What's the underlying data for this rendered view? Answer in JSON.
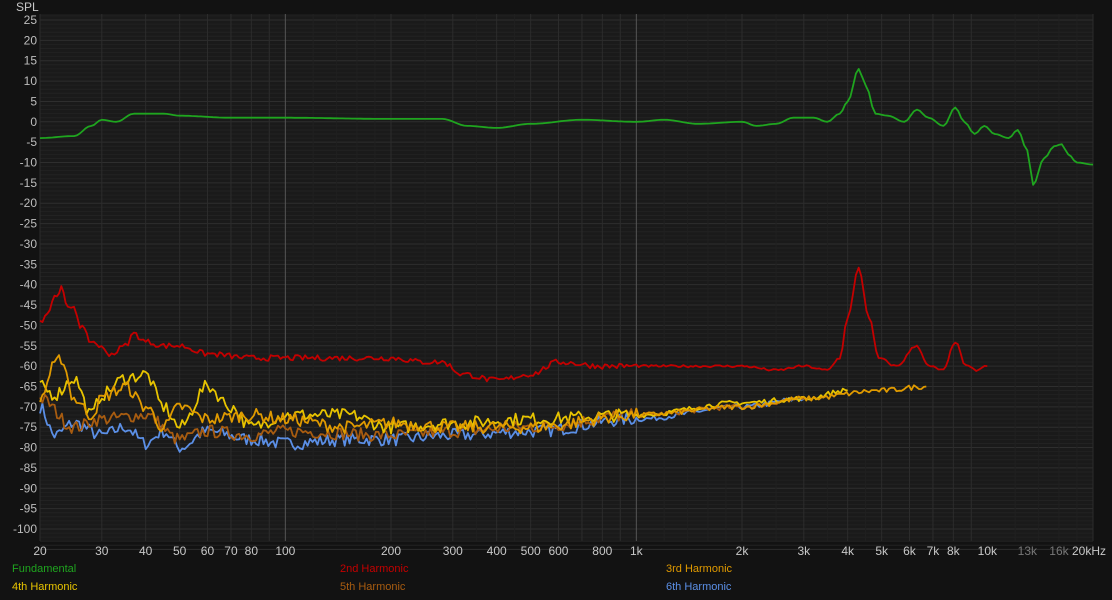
{
  "chart_data": {
    "type": "line",
    "ylabel": "SPL",
    "xscale": "log",
    "xlim": [
      20,
      20000
    ],
    "ylim": [
      -105,
      26
    ],
    "y_ticks": [
      25,
      20,
      15,
      10,
      5,
      0,
      -5,
      -10,
      -15,
      -20,
      -25,
      -30,
      -35,
      -40,
      -45,
      -50,
      -55,
      -60,
      -65,
      -70,
      -75,
      -80,
      -85,
      -90,
      -95,
      -100
    ],
    "x_ticks": [
      {
        "v": 20,
        "label": "20"
      },
      {
        "v": 30,
        "label": "30"
      },
      {
        "v": 40,
        "label": "40"
      },
      {
        "v": 50,
        "label": "50"
      },
      {
        "v": 60,
        "label": "60"
      },
      {
        "v": 70,
        "label": "70"
      },
      {
        "v": 80,
        "label": "80"
      },
      {
        "v": 100,
        "label": "100"
      },
      {
        "v": 200,
        "label": "200"
      },
      {
        "v": 300,
        "label": "300"
      },
      {
        "v": 400,
        "label": "400"
      },
      {
        "v": 500,
        "label": "500"
      },
      {
        "v": 600,
        "label": "600"
      },
      {
        "v": 800,
        "label": "800"
      },
      {
        "v": 1000,
        "label": "1k"
      },
      {
        "v": 2000,
        "label": "2k"
      },
      {
        "v": 3000,
        "label": "3k"
      },
      {
        "v": 4000,
        "label": "4k"
      },
      {
        "v": 5000,
        "label": "5k"
      },
      {
        "v": 6000,
        "label": "6k"
      },
      {
        "v": 7000,
        "label": "7k"
      },
      {
        "v": 8000,
        "label": "8k"
      },
      {
        "v": 10000,
        "label": "10k"
      },
      {
        "v": 13000,
        "label": "13k",
        "dim": true
      },
      {
        "v": 16000,
        "label": "16k",
        "dim": true
      },
      {
        "v": 20000,
        "label": "20kHz"
      }
    ],
    "grid": true,
    "legend_placement": "bottom",
    "series": [
      {
        "name": "Fundamental",
        "color": "#1fa51f",
        "points": [
          [
            20,
            -4
          ],
          [
            25,
            -3.5
          ],
          [
            28,
            -1
          ],
          [
            30,
            0.5
          ],
          [
            33,
            0
          ],
          [
            37,
            2
          ],
          [
            45,
            2
          ],
          [
            50,
            1.5
          ],
          [
            70,
            1
          ],
          [
            100,
            1
          ],
          [
            200,
            0.7
          ],
          [
            280,
            0.7
          ],
          [
            330,
            -1
          ],
          [
            400,
            -1.5
          ],
          [
            500,
            -0.5
          ],
          [
            700,
            0.5
          ],
          [
            1000,
            0
          ],
          [
            1200,
            0.5
          ],
          [
            1500,
            -0.5
          ],
          [
            2000,
            0
          ],
          [
            2200,
            -1
          ],
          [
            2500,
            -0.5
          ],
          [
            2800,
            1
          ],
          [
            3200,
            1
          ],
          [
            3500,
            0
          ],
          [
            3800,
            2
          ],
          [
            4000,
            5
          ],
          [
            4300,
            13
          ],
          [
            4500,
            9
          ],
          [
            4800,
            2
          ],
          [
            5200,
            1.5
          ],
          [
            5800,
            0
          ],
          [
            6300,
            3
          ],
          [
            6800,
            1
          ],
          [
            7500,
            -1
          ],
          [
            8100,
            3.5
          ],
          [
            8600,
            0
          ],
          [
            9200,
            -3
          ],
          [
            9800,
            -1
          ],
          [
            10500,
            -3
          ],
          [
            11500,
            -4
          ],
          [
            12200,
            -2
          ],
          [
            13000,
            -7
          ],
          [
            13500,
            -15.5
          ],
          [
            14500,
            -9
          ],
          [
            15500,
            -6
          ],
          [
            16300,
            -5.5
          ],
          [
            17000,
            -8
          ],
          [
            18000,
            -10
          ],
          [
            20000,
            -10.5
          ]
        ]
      },
      {
        "name": "2nd Harmonic",
        "color": "#c40000",
        "points": [
          [
            20,
            -49
          ],
          [
            21,
            -47
          ],
          [
            22,
            -43
          ],
          [
            23,
            -41
          ],
          [
            24,
            -46
          ],
          [
            25,
            -45
          ],
          [
            26,
            -50
          ],
          [
            28,
            -54
          ],
          [
            32,
            -57
          ],
          [
            35,
            -55
          ],
          [
            37,
            -52
          ],
          [
            40,
            -54
          ],
          [
            45,
            -55
          ],
          [
            50,
            -55
          ],
          [
            60,
            -57
          ],
          [
            80,
            -58
          ],
          [
            100,
            -58
          ],
          [
            150,
            -58
          ],
          [
            200,
            -58
          ],
          [
            250,
            -59
          ],
          [
            280,
            -59
          ],
          [
            320,
            -62
          ],
          [
            400,
            -63.5
          ],
          [
            500,
            -62
          ],
          [
            600,
            -59
          ],
          [
            800,
            -60
          ],
          [
            1000,
            -60
          ],
          [
            1500,
            -60
          ],
          [
            2000,
            -60
          ],
          [
            2500,
            -61
          ],
          [
            3000,
            -60
          ],
          [
            3500,
            -61
          ],
          [
            3800,
            -58
          ],
          [
            4000,
            -48
          ],
          [
            4300,
            -36
          ],
          [
            4600,
            -48
          ],
          [
            4900,
            -58
          ],
          [
            5500,
            -60
          ],
          [
            6300,
            -55
          ],
          [
            6800,
            -60
          ],
          [
            7500,
            -61
          ],
          [
            8100,
            -54
          ],
          [
            8700,
            -60
          ],
          [
            9300,
            -61
          ],
          [
            10000,
            -60
          ]
        ]
      },
      {
        "name": "3rd Harmonic",
        "color": "#e09a00",
        "points": [
          [
            20,
            -68
          ],
          [
            22,
            -60
          ],
          [
            23,
            -58
          ],
          [
            25,
            -68
          ],
          [
            28,
            -72
          ],
          [
            30,
            -68
          ],
          [
            33,
            -66
          ],
          [
            35,
            -65
          ],
          [
            40,
            -70
          ],
          [
            45,
            -75
          ],
          [
            50,
            -70
          ],
          [
            60,
            -73
          ],
          [
            80,
            -72
          ],
          [
            100,
            -73
          ],
          [
            150,
            -75
          ],
          [
            200,
            -74
          ],
          [
            300,
            -75
          ],
          [
            500,
            -75
          ],
          [
            1000,
            -72
          ],
          [
            2000,
            -70
          ],
          [
            3000,
            -68
          ],
          [
            5000,
            -66
          ],
          [
            6700,
            -65
          ]
        ]
      },
      {
        "name": "4th Harmonic",
        "color": "#e8c400",
        "points": [
          [
            20,
            -65
          ],
          [
            22,
            -67
          ],
          [
            25,
            -63
          ],
          [
            28,
            -72
          ],
          [
            30,
            -67
          ],
          [
            35,
            -63
          ],
          [
            40,
            -62
          ],
          [
            45,
            -70
          ],
          [
            50,
            -75
          ],
          [
            60,
            -65
          ],
          [
            70,
            -70
          ],
          [
            80,
            -75
          ],
          [
            100,
            -72
          ],
          [
            150,
            -72
          ],
          [
            200,
            -75
          ],
          [
            300,
            -74
          ],
          [
            500,
            -73
          ],
          [
            1000,
            -72
          ],
          [
            2000,
            -69
          ],
          [
            3000,
            -68
          ],
          [
            4000,
            -66
          ]
        ]
      },
      {
        "name": "5th Harmonic",
        "color": "#a85c10",
        "points": [
          [
            20,
            -68
          ],
          [
            25,
            -75
          ],
          [
            30,
            -73
          ],
          [
            40,
            -72
          ],
          [
            50,
            -78
          ],
          [
            60,
            -76
          ],
          [
            80,
            -77
          ],
          [
            100,
            -76
          ],
          [
            200,
            -77
          ],
          [
            300,
            -76
          ],
          [
            500,
            -75
          ],
          [
            1000,
            -72
          ],
          [
            2000,
            -70
          ],
          [
            3000,
            -68
          ]
        ]
      },
      {
        "name": "6th Harmonic",
        "color": "#5b8fe6",
        "points": [
          [
            20,
            -70
          ],
          [
            22,
            -77
          ],
          [
            25,
            -74
          ],
          [
            30,
            -77
          ],
          [
            35,
            -75
          ],
          [
            40,
            -79
          ],
          [
            45,
            -76
          ],
          [
            50,
            -80
          ],
          [
            60,
            -76
          ],
          [
            80,
            -78
          ],
          [
            100,
            -79
          ],
          [
            150,
            -78
          ],
          [
            200,
            -78
          ],
          [
            300,
            -77
          ],
          [
            500,
            -76
          ],
          [
            1000,
            -73
          ],
          [
            2000,
            -70
          ],
          [
            3000,
            -68
          ]
        ]
      }
    ]
  }
}
